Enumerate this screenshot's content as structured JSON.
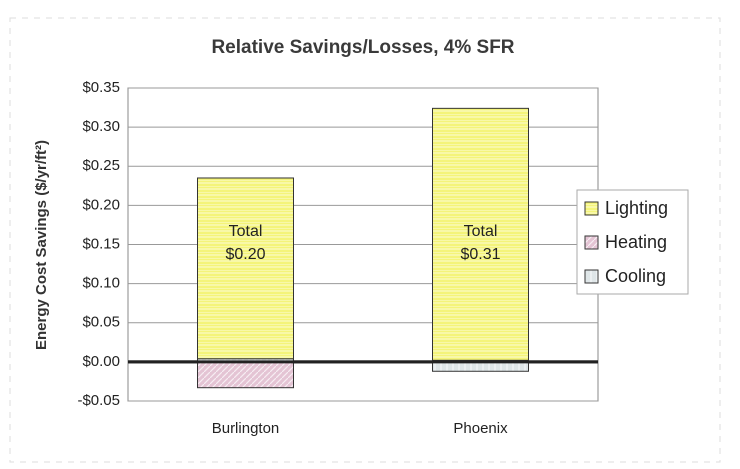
{
  "chart_data": {
    "type": "stacked_bar",
    "title": "Relative Savings/Losses, 4% SFR",
    "y_label": "Energy Cost Savings ($/yr/ft²)",
    "categories": [
      "Burlington",
      "Phoenix"
    ],
    "series": [
      {
        "name": "Cooling",
        "color": "#dfe6e8",
        "values": [
          0.004,
          -0.012
        ]
      },
      {
        "name": "Heating",
        "color": "#e4c4d4",
        "values": [
          -0.033,
          0.002
        ]
      },
      {
        "name": "Lighting",
        "color": "#f4f47a",
        "values": [
          0.231,
          0.322
        ]
      }
    ],
    "legend_order": [
      2,
      1,
      0
    ],
    "annotations": [
      {
        "lines": [
          "Total",
          "$0.20"
        ]
      },
      {
        "lines": [
          "Total",
          "$0.31"
        ]
      }
    ],
    "ylim": [
      -0.05,
      0.35
    ],
    "yticks": [
      {
        "value": -0.05,
        "label": "-$0.05"
      },
      {
        "value": 0,
        "label": "$0.00"
      },
      {
        "value": 0.05,
        "label": "$0.05"
      },
      {
        "value": 0.1,
        "label": "$0.10"
      },
      {
        "value": 0.15,
        "label": "$0.15"
      },
      {
        "value": 0.2,
        "label": "$0.20"
      },
      {
        "value": 0.25,
        "label": "$0.25"
      },
      {
        "value": 0.3,
        "label": "$0.30"
      },
      {
        "value": 0.35,
        "label": "$0.35"
      }
    ],
    "grid": true,
    "legend": "right"
  }
}
